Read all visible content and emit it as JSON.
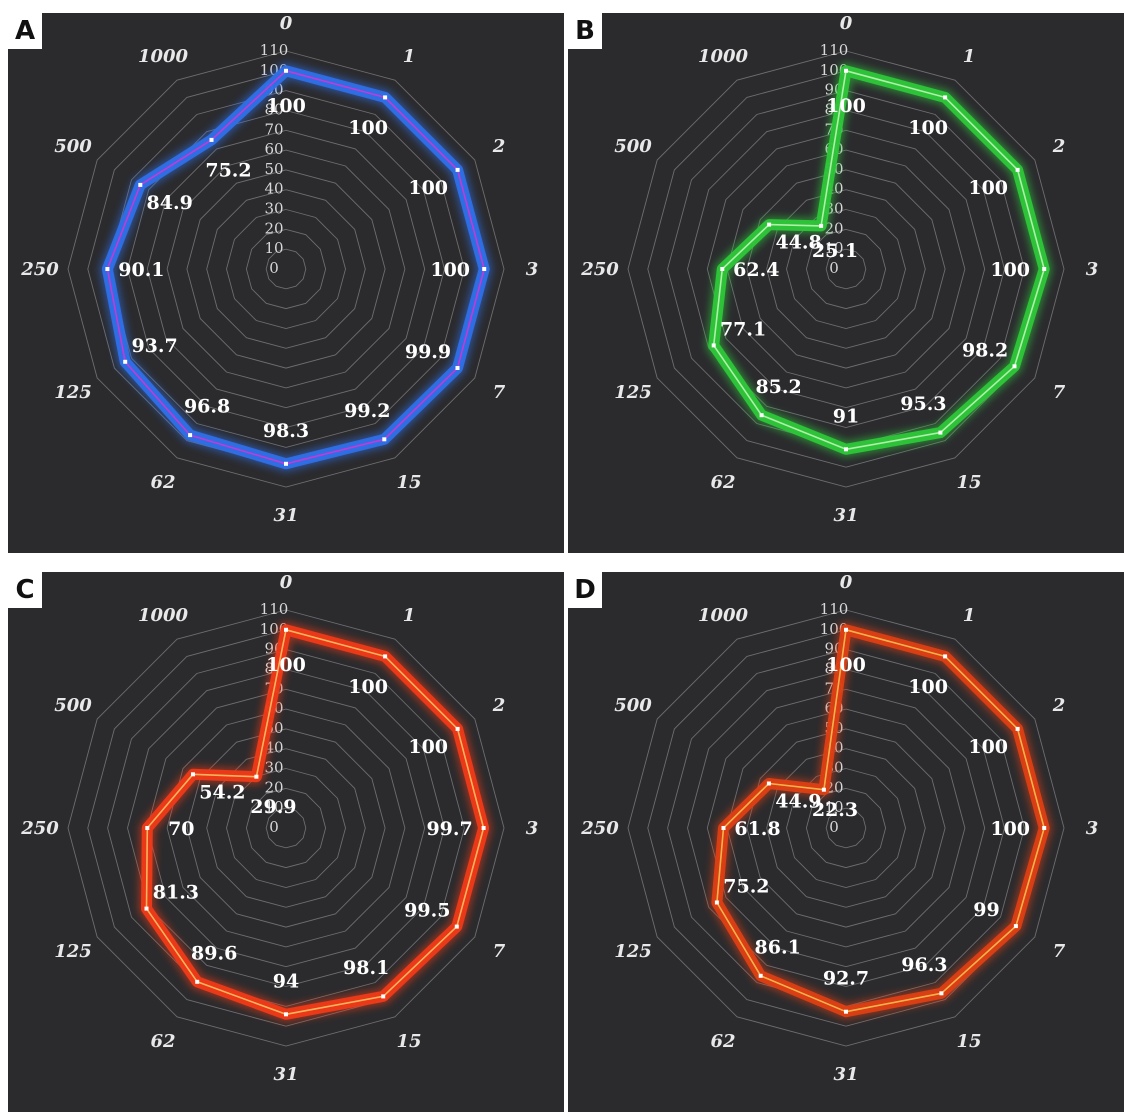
{
  "chart_data": [
    {
      "type": "radar",
      "panel_label": "A",
      "categories": [
        "0",
        "1",
        "2",
        "3",
        "7",
        "15",
        "31",
        "62",
        "125",
        "250",
        "500",
        "1000"
      ],
      "values": [
        100,
        100,
        100,
        100,
        99.9,
        99.2,
        98.3,
        96.8,
        93.7,
        90.1,
        84.9,
        75.2
      ],
      "radial_ticks": [
        "0",
        "10",
        "20",
        "30",
        "40",
        "50",
        "60",
        "70",
        "80",
        "90",
        "100",
        "110"
      ],
      "rlim": [
        0,
        110
      ],
      "color": "#2f6fe8",
      "line_color": "#c23ad8",
      "grid": true
    },
    {
      "type": "radar",
      "panel_label": "B",
      "categories": [
        "0",
        "1",
        "2",
        "3",
        "7",
        "15",
        "31",
        "62",
        "125",
        "250",
        "500",
        "1000"
      ],
      "values": [
        100,
        100,
        100,
        100,
        98.2,
        95.3,
        91,
        85.2,
        77.1,
        62.4,
        44.8,
        25.1
      ],
      "radial_ticks": [
        "0",
        "10",
        "20",
        "30",
        "40",
        "50",
        "60",
        "70",
        "80",
        "90",
        "100",
        "110"
      ],
      "rlim": [
        0,
        110
      ],
      "color": "#2ec63a",
      "line_color": "#aef0a8",
      "grid": true
    },
    {
      "type": "radar",
      "panel_label": "C",
      "categories": [
        "0",
        "1",
        "2",
        "3",
        "7",
        "15",
        "31",
        "62",
        "125",
        "250",
        "500",
        "1000"
      ],
      "values": [
        100,
        100,
        100,
        99.7,
        99.5,
        98.1,
        94,
        89.6,
        81.3,
        70,
        54.2,
        29.9
      ],
      "radial_ticks": [
        "0",
        "10",
        "20",
        "30",
        "40",
        "50",
        "60",
        "70",
        "80",
        "90",
        "100",
        "110"
      ],
      "rlim": [
        0,
        110
      ],
      "color": "#ee3a18",
      "line_color": "#ffb35a",
      "grid": true
    },
    {
      "type": "radar",
      "panel_label": "D",
      "categories": [
        "0",
        "1",
        "2",
        "3",
        "7",
        "15",
        "31",
        "62",
        "125",
        "250",
        "500",
        "1000"
      ],
      "values": [
        100,
        100,
        100,
        100,
        99,
        96.3,
        92.7,
        86.1,
        75.2,
        61.8,
        44.9,
        22.3
      ],
      "radial_ticks": [
        "0",
        "10",
        "20",
        "30",
        "40",
        "50",
        "60",
        "70",
        "80",
        "90",
        "100",
        "110"
      ],
      "rlim": [
        0,
        110
      ],
      "color": "#dd3f14",
      "line_color": "#f7b34a",
      "grid": true
    }
  ]
}
